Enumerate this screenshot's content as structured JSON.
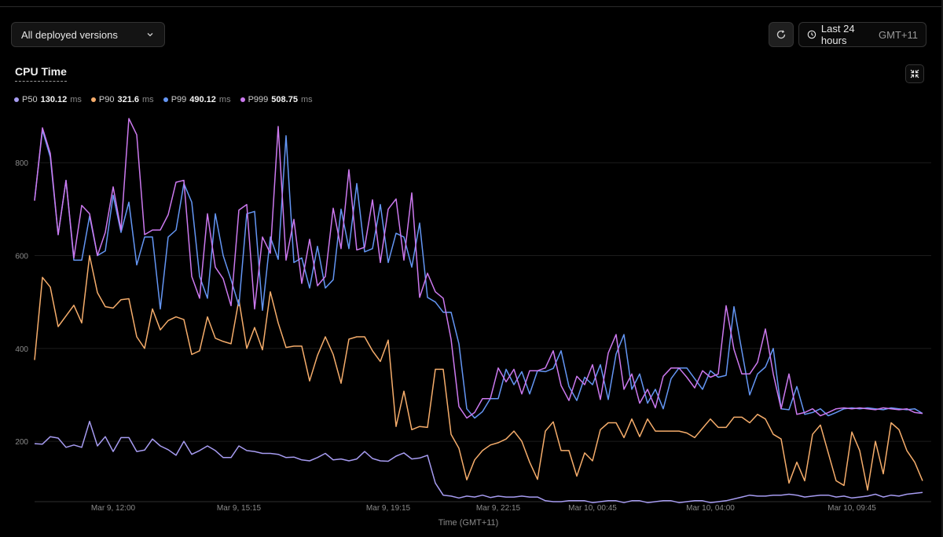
{
  "toolbar": {
    "version_select": "All deployed versions",
    "time_range": "Last 24 hours",
    "timezone": "GMT+11"
  },
  "chart_title": "CPU Time",
  "legend": [
    {
      "name": "P50",
      "value": "130.12",
      "unit": "ms",
      "color": "#a79cf2"
    },
    {
      "name": "P90",
      "value": "321.6",
      "unit": "ms",
      "color": "#f6ad6b"
    },
    {
      "name": "P99",
      "value": "490.12",
      "unit": "ms",
      "color": "#6496f4"
    },
    {
      "name": "P999",
      "value": "508.75",
      "unit": "ms",
      "color": "#cc79ef"
    }
  ],
  "chart_data": {
    "type": "line",
    "title": "CPU Time",
    "xlabel": "Time (GMT+11)",
    "ylabel": "ms",
    "ylim": [
      70,
      890
    ],
    "yticks": [
      200,
      400,
      600,
      800
    ],
    "x_tick_labels": [
      {
        "label": "Mar 9, 12:00",
        "index": 10
      },
      {
        "label": "Mar 9, 15:15",
        "index": 26
      },
      {
        "label": "Mar 9, 19:15",
        "index": 45
      },
      {
        "label": "Mar 9, 22:15",
        "index": 59
      },
      {
        "label": "Mar 10, 00:45",
        "index": 71
      },
      {
        "label": "Mar 10, 04:00",
        "index": 86
      },
      {
        "label": "Mar 10, 09:45",
        "index": 104
      }
    ],
    "point_count": 114,
    "series": [
      {
        "name": "P50",
        "color": "#a79cf2",
        "values": [
          195,
          194,
          210,
          207,
          187,
          192,
          187,
          243,
          190,
          210,
          178,
          208,
          208,
          178,
          181,
          205,
          190,
          182,
          170,
          200,
          172,
          180,
          190,
          180,
          165,
          165,
          190,
          180,
          178,
          174,
          174,
          172,
          165,
          166,
          160,
          158,
          165,
          174,
          160,
          162,
          158,
          162,
          178,
          163,
          158,
          157,
          168,
          175,
          162,
          164,
          170,
          110,
          84,
          82,
          78,
          82,
          80,
          84,
          79,
          82,
          80,
          80,
          82,
          80,
          80,
          72,
          70,
          70,
          72,
          72,
          72,
          68,
          70,
          72,
          72,
          68,
          72,
          72,
          68,
          70,
          72,
          72,
          68,
          70,
          72,
          72,
          68,
          70,
          72,
          76,
          80,
          84,
          82,
          82,
          84,
          84,
          86,
          84,
          80,
          82,
          84,
          84,
          80,
          82,
          78,
          80,
          82,
          86,
          80,
          84,
          82,
          86,
          88,
          90
        ]
      },
      {
        "name": "P90",
        "color": "#f6ad6b",
        "values": [
          375,
          553,
          532,
          447,
          470,
          493,
          455,
          600,
          520,
          490,
          487,
          505,
          507,
          425,
          400,
          485,
          440,
          460,
          468,
          462,
          387,
          395,
          468,
          422,
          415,
          410,
          505,
          400,
          445,
          397,
          522,
          455,
          402,
          405,
          405,
          330,
          385,
          425,
          387,
          325,
          420,
          425,
          425,
          395,
          372,
          418,
          232,
          308,
          225,
          232,
          230,
          355,
          355,
          215,
          185,
          117,
          160,
          180,
          192,
          197,
          205,
          222,
          200,
          155,
          118,
          222,
          242,
          180,
          180,
          125,
          175,
          158,
          225,
          240,
          240,
          208,
          248,
          210,
          248,
          222,
          222,
          222,
          222,
          218,
          208,
          228,
          248,
          230,
          230,
          252,
          252,
          240,
          258,
          248,
          215,
          205,
          110,
          155,
          115,
          215,
          235,
          175,
          115,
          105,
          220,
          180,
          95,
          200,
          130,
          240,
          225,
          180,
          155,
          115
        ]
      },
      {
        "name": "P99",
        "color": "#6496f4",
        "values": [
          720,
          870,
          812,
          645,
          762,
          590,
          590,
          685,
          600,
          610,
          730,
          650,
          715,
          580,
          640,
          640,
          485,
          640,
          655,
          755,
          715,
          555,
          508,
          690,
          600,
          548,
          492,
          690,
          695,
          482,
          640,
          592,
          858,
          585,
          595,
          530,
          620,
          530,
          548,
          700,
          615,
          755,
          608,
          615,
          710,
          585,
          648,
          640,
          575,
          670,
          510,
          500,
          478,
          478,
          410,
          270,
          250,
          264,
          292,
          292,
          355,
          322,
          350,
          302,
          352,
          350,
          357,
          395,
          318,
          288,
          338,
          322,
          365,
          290,
          388,
          430,
          312,
          345,
          282,
          312,
          270,
          335,
          358,
          358,
          335,
          312,
          352,
          338,
          342,
          490,
          395,
          300,
          345,
          360,
          400,
          270,
          268,
          318,
          258,
          262,
          270,
          255,
          262,
          270,
          272,
          270,
          272,
          270,
          268,
          272,
          270,
          268,
          270,
          260
        ]
      },
      {
        "name": "P999",
        "color": "#cc79ef",
        "values": [
          718,
          875,
          820,
          645,
          762,
          595,
          708,
          690,
          600,
          650,
          748,
          655,
          895,
          860,
          645,
          655,
          655,
          688,
          758,
          762,
          555,
          508,
          690,
          575,
          550,
          492,
          698,
          710,
          485,
          640,
          605,
          878,
          590,
          678,
          540,
          635,
          535,
          555,
          702,
          615,
          785,
          612,
          618,
          720,
          585,
          700,
          722,
          590,
          735,
          510,
          562,
          522,
          508,
          420,
          275,
          250,
          262,
          292,
          292,
          358,
          328,
          355,
          302,
          352,
          352,
          358,
          395,
          320,
          288,
          340,
          322,
          365,
          290,
          390,
          430,
          312,
          345,
          282,
          312,
          272,
          340,
          358,
          358,
          338,
          315,
          352,
          338,
          345,
          492,
          398,
          345,
          345,
          370,
          442,
          345,
          270,
          345,
          258,
          262,
          270,
          255,
          262,
          270,
          272,
          270,
          272,
          270,
          268,
          272,
          270,
          268,
          270,
          262,
          260
        ]
      }
    ]
  }
}
